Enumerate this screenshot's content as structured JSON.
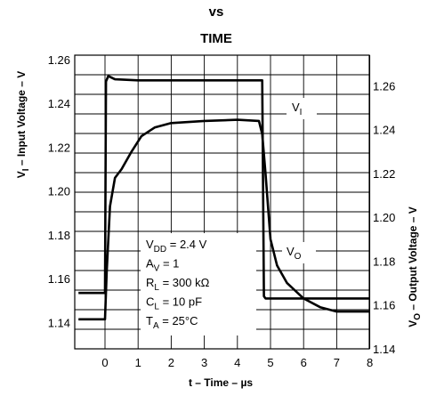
{
  "chart_data": {
    "type": "line",
    "title": "vs",
    "subtitle": "TIME",
    "xlabel": "t – Time – µs",
    "ylabel_left": "VI – Input Voltage – V",
    "ylabel_right": "VO – Output Voltage – V",
    "x_ticks": [
      "0",
      "1",
      "2",
      "3",
      "4",
      "5",
      "6",
      "7",
      "8"
    ],
    "y_left_ticks": [
      "1.26",
      "1.24",
      "1.22",
      "1.20",
      "1.18",
      "1.16",
      "1.14"
    ],
    "y_right_ticks": [
      "1.26",
      "1.24",
      "1.22",
      "1.20",
      "1.18",
      "1.16",
      "1.14"
    ],
    "xlim": [
      -0.8,
      8
    ],
    "ylim_left": [
      1.128,
      1.262
    ],
    "ylim_right": [
      1.14,
      1.274
    ],
    "grid": true,
    "series": [
      {
        "name": "VI",
        "axis": "left",
        "x": [
          -0.8,
          0.0,
          0.03,
          0.1,
          0.3,
          1,
          2,
          3,
          4,
          4.6,
          4.7,
          4.75,
          4.8,
          4.85,
          5.0,
          6,
          7,
          8
        ],
        "y": [
          1.1535,
          1.1535,
          1.25,
          1.2525,
          1.251,
          1.2505,
          1.2505,
          1.2505,
          1.2505,
          1.2505,
          1.2505,
          1.2505,
          1.152,
          1.151,
          1.151,
          1.151,
          1.151,
          1.151
        ]
      },
      {
        "name": "VO",
        "axis": "right",
        "x": [
          -0.8,
          0.0,
          0.05,
          0.15,
          0.3,
          0.5,
          0.8,
          1.1,
          1.5,
          2.0,
          3.0,
          4.0,
          4.65,
          4.75,
          4.85,
          5.0,
          5.2,
          5.5,
          6.0,
          6.5,
          7.0,
          8.0
        ],
        "y": [
          1.1535,
          1.1535,
          1.175,
          1.205,
          1.218,
          1.222,
          1.23,
          1.237,
          1.241,
          1.243,
          1.244,
          1.2445,
          1.244,
          1.238,
          1.22,
          1.19,
          1.178,
          1.17,
          1.163,
          1.159,
          1.157,
          1.157
        ]
      }
    ],
    "annotations": {
      "vi_label": {
        "text": "V",
        "sub": "I"
      },
      "vo_label": {
        "text": "V",
        "sub": "O"
      },
      "conditions": [
        {
          "text": "V",
          "sub": "DD",
          "rest": " = 2.4 V"
        },
        {
          "text": "A",
          "sub": "V",
          "rest": " = 1"
        },
        {
          "text": "R",
          "sub": "L",
          "rest": " = 300 kΩ"
        },
        {
          "text": "C",
          "sub": "L",
          "rest": " = 10 pF"
        },
        {
          "text": "T",
          "sub": "A",
          "rest": " = 25°C"
        }
      ]
    }
  }
}
